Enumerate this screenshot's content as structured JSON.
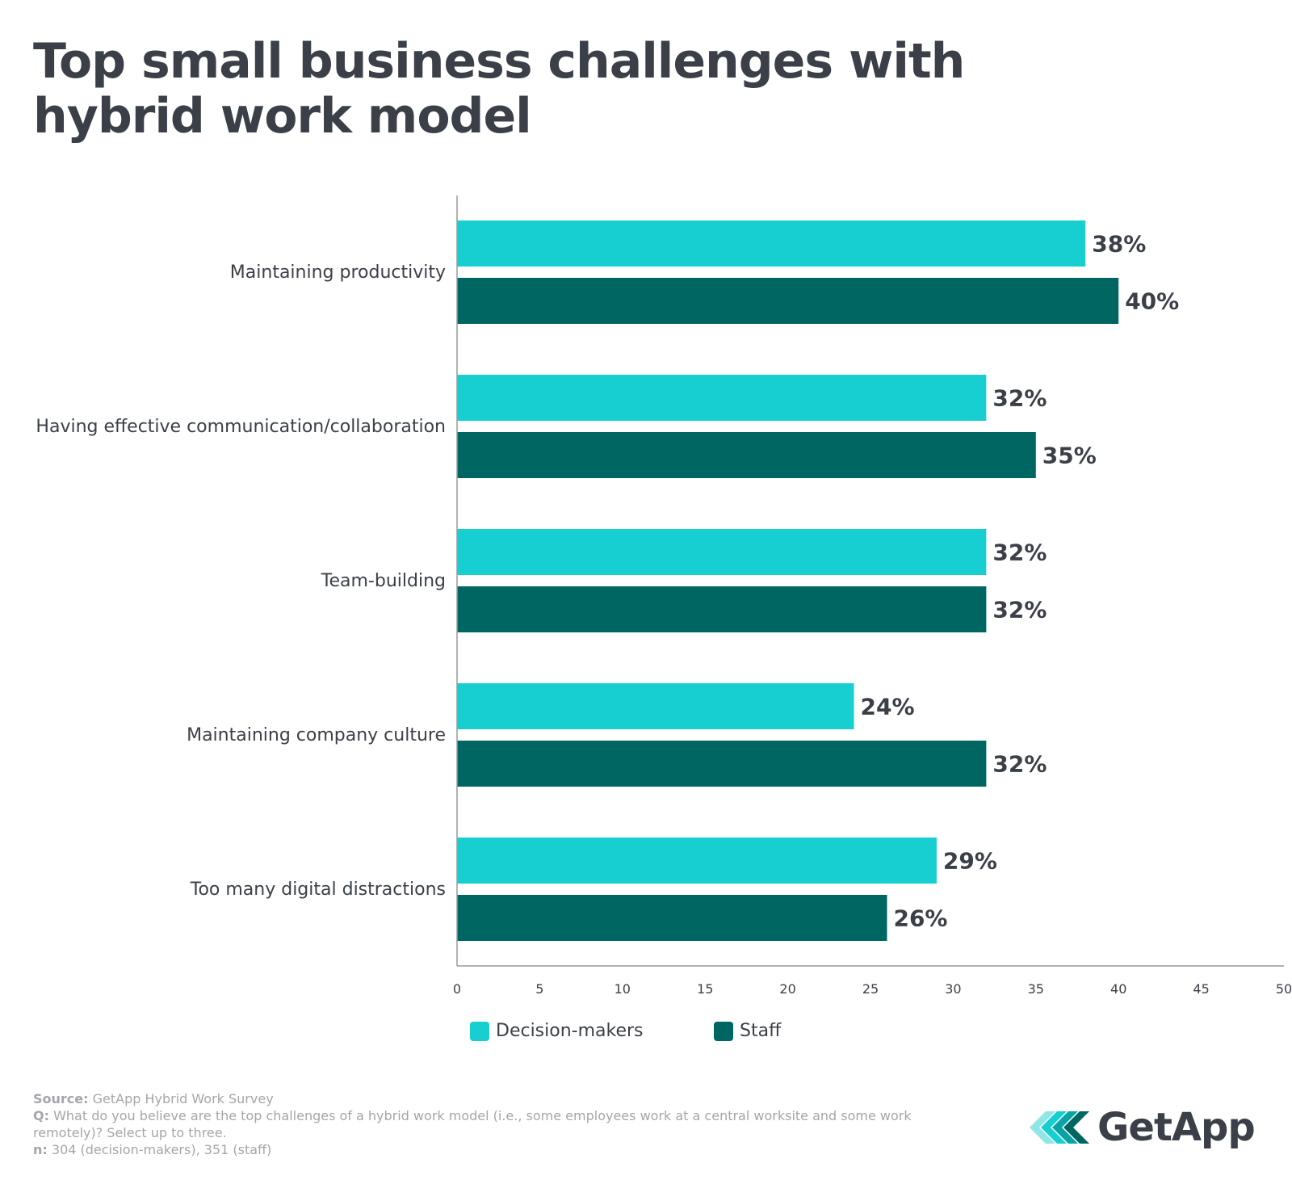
{
  "title_lines": [
    "Top small business challenges with",
    "hybrid work model"
  ],
  "colors": {
    "decision_makers": "#17cfd0",
    "staff": "#006661",
    "text": "#3b4048",
    "axis": "#9a9a9a",
    "footnote": "#a3a6aa"
  },
  "chart_data": {
    "type": "bar",
    "orientation": "horizontal",
    "title": "Top small business challenges with hybrid work model",
    "categories": [
      "Maintaining productivity",
      "Having effective communication/collaboration",
      "Team-building",
      "Maintaining company culture",
      "Too many digital distractions"
    ],
    "series": [
      {
        "name": "Decision-makers",
        "values": [
          38,
          32,
          32,
          24,
          29
        ],
        "labels": [
          "38%",
          "32%",
          "32%",
          "24%",
          "29%"
        ]
      },
      {
        "name": "Staff",
        "values": [
          40,
          35,
          32,
          32,
          26
        ],
        "labels": [
          "40%",
          "35%",
          "32%",
          "32%",
          "26%"
        ]
      }
    ],
    "xlim": [
      0,
      50
    ],
    "xticks": [
      0,
      5,
      10,
      15,
      20,
      25,
      30,
      35,
      40,
      45,
      50
    ],
    "xlabel": "",
    "ylabel": "",
    "grid": false,
    "legend": "bottom"
  },
  "legend": {
    "decision_makers": "Decision-makers",
    "staff": "Staff"
  },
  "footnote": {
    "source_key": "Source:",
    "source_value": " GetApp Hybrid Work Survey",
    "q_key": "Q:",
    "q_value": " What do you believe are the top challenges of a hybrid work model (i.e., some employees work at a central worksite and some work remotely)? Select up to three.",
    "n_key": "n:",
    "n_value": " 304 (decision-makers), 351 (staff)"
  },
  "logo": {
    "text": "GetApp",
    "icon": "getapp-chevrons-icon"
  }
}
